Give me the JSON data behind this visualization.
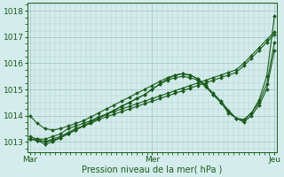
{
  "xlabel": "Pression niveau de la mer( hPa )",
  "background_color": "#d4ecec",
  "grid_color": "#aacccc",
  "line_color": "#1a5c1a",
  "ylim": [
    1012.6,
    1018.3
  ],
  "yticks": [
    1013,
    1014,
    1015,
    1016,
    1017,
    1018
  ],
  "xtick_labels": [
    "Mar",
    "Mer",
    "Jeu"
  ],
  "xtick_positions": [
    0,
    96,
    192
  ],
  "series": [
    {
      "x": [
        0,
        6,
        12,
        18,
        24,
        30,
        36,
        42,
        48,
        54,
        60,
        66,
        72,
        78,
        84,
        90,
        96,
        102,
        108,
        114,
        120,
        126,
        132,
        138,
        144,
        150,
        156,
        162,
        168,
        174,
        180,
        186,
        192
      ],
      "y": [
        1013.1,
        1013.1,
        1013.1,
        1013.2,
        1013.3,
        1013.5,
        1013.6,
        1013.7,
        1013.8,
        1013.95,
        1014.05,
        1014.15,
        1014.25,
        1014.35,
        1014.45,
        1014.55,
        1014.65,
        1014.75,
        1014.85,
        1014.95,
        1015.05,
        1015.15,
        1015.25,
        1015.35,
        1015.45,
        1015.55,
        1015.65,
        1015.75,
        1016.0,
        1016.3,
        1016.6,
        1016.9,
        1017.2
      ]
    },
    {
      "x": [
        0,
        6,
        12,
        18,
        24,
        30,
        36,
        42,
        48,
        54,
        60,
        66,
        72,
        78,
        84,
        90,
        96,
        102,
        108,
        114,
        120,
        126,
        132,
        138,
        144,
        150,
        156,
        162,
        168,
        174,
        180,
        186,
        192
      ],
      "y": [
        1013.1,
        1013.05,
        1013.0,
        1013.1,
        1013.2,
        1013.35,
        1013.5,
        1013.6,
        1013.7,
        1013.85,
        1013.95,
        1014.05,
        1014.15,
        1014.25,
        1014.35,
        1014.45,
        1014.55,
        1014.65,
        1014.75,
        1014.85,
        1014.95,
        1015.05,
        1015.15,
        1015.25,
        1015.35,
        1015.45,
        1015.55,
        1015.65,
        1015.9,
        1016.2,
        1016.5,
        1016.8,
        1017.1
      ]
    },
    {
      "x": [
        0,
        6,
        12,
        18,
        24,
        30,
        36,
        42,
        48,
        54,
        60,
        66,
        72,
        78,
        84,
        90,
        96,
        102,
        108,
        114,
        120,
        126,
        132,
        138,
        144,
        150,
        156,
        162,
        168,
        174,
        180,
        186,
        192
      ],
      "y": [
        1013.1,
        1013.05,
        1012.9,
        1013.0,
        1013.15,
        1013.3,
        1013.45,
        1013.6,
        1013.75,
        1013.9,
        1014.05,
        1014.2,
        1014.35,
        1014.5,
        1014.65,
        1014.8,
        1015.0,
        1015.2,
        1015.35,
        1015.45,
        1015.5,
        1015.45,
        1015.35,
        1015.1,
        1014.8,
        1014.5,
        1014.1,
        1013.9,
        1013.85,
        1014.1,
        1014.5,
        1015.2,
        1016.8
      ]
    },
    {
      "x": [
        0,
        6,
        12,
        18,
        24,
        30,
        36,
        42,
        48,
        54,
        60,
        66,
        72,
        78,
        84,
        90,
        96,
        102,
        108,
        114,
        120,
        126,
        132,
        138,
        144,
        150,
        156,
        162,
        168,
        174,
        180,
        186,
        192
      ],
      "y": [
        1014.0,
        1013.7,
        1013.5,
        1013.45,
        1013.5,
        1013.6,
        1013.7,
        1013.8,
        1013.95,
        1014.1,
        1014.25,
        1014.4,
        1014.55,
        1014.7,
        1014.85,
        1015.0,
        1015.15,
        1015.3,
        1015.45,
        1015.55,
        1015.6,
        1015.55,
        1015.4,
        1015.15,
        1014.85,
        1014.55,
        1014.2,
        1013.9,
        1013.75,
        1014.0,
        1014.4,
        1015.0,
        1016.5
      ]
    },
    {
      "x": [
        0,
        6,
        12,
        18,
        24,
        30,
        36,
        42,
        48,
        54,
        60,
        66,
        72,
        78,
        84,
        90,
        96,
        102,
        108,
        114,
        120,
        126,
        132,
        138,
        144,
        150,
        156,
        162,
        168,
        174,
        180,
        186,
        192
      ],
      "y": [
        1013.2,
        1013.1,
        1013.0,
        1013.05,
        1013.15,
        1013.3,
        1013.45,
        1013.6,
        1013.75,
        1013.9,
        1014.05,
        1014.2,
        1014.35,
        1014.5,
        1014.65,
        1014.8,
        1015.0,
        1015.2,
        1015.4,
        1015.55,
        1015.6,
        1015.55,
        1015.4,
        1015.15,
        1014.8,
        1014.5,
        1014.15,
        1013.9,
        1013.8,
        1014.1,
        1014.6,
        1015.5,
        1017.8
      ]
    }
  ]
}
